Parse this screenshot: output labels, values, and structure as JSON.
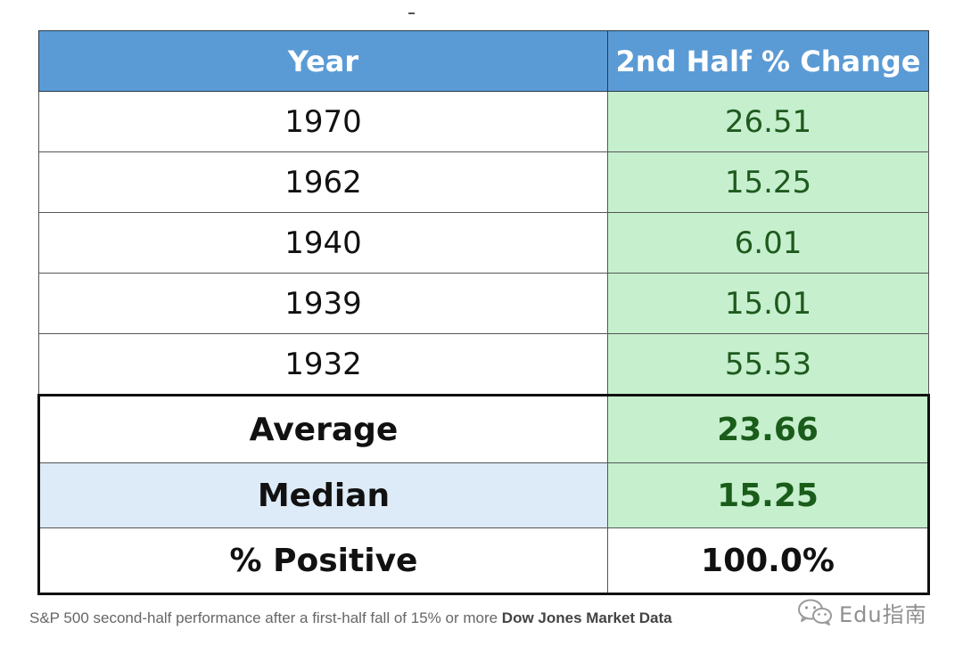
{
  "table": {
    "headers": [
      "Year",
      "2nd Half % Change"
    ],
    "rows": [
      {
        "year": "1970",
        "change": "26.51"
      },
      {
        "year": "1962",
        "change": "15.25"
      },
      {
        "year": "1940",
        "change": "6.01"
      },
      {
        "year": "1939",
        "change": "15.01"
      },
      {
        "year": "1932",
        "change": "55.53"
      }
    ],
    "summary": [
      {
        "label": "Average",
        "value": "23.66"
      },
      {
        "label": "Median",
        "value": "15.25"
      },
      {
        "label": "% Positive",
        "value": "100.0%"
      }
    ]
  },
  "caption": {
    "text": "S&P 500 second-half performance after a first-half fall of 15% or more",
    "source": "Dow Jones Market Data"
  },
  "watermark": {
    "icon": "wechat-icon",
    "text": "Edu指南"
  },
  "colors": {
    "header_bg": "#5b9bd5",
    "value_bg": "#c6efce",
    "median_label_bg": "#ddeaf7",
    "value_text": "#1e5a1e"
  }
}
